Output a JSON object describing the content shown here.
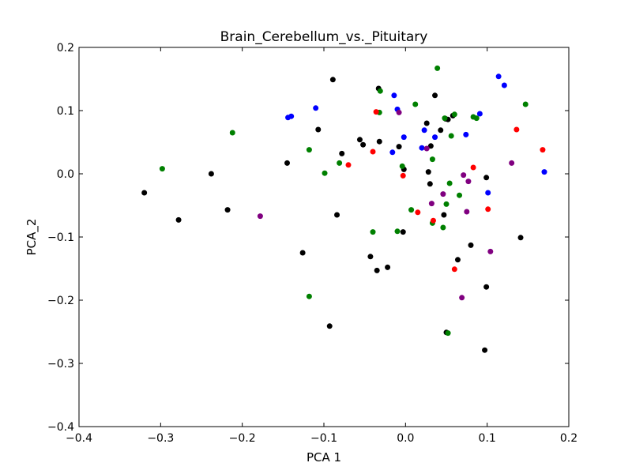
{
  "chart_data": {
    "type": "scatter",
    "title": "Brain_Cerebellum_vs._Pituitary",
    "xlabel": "PCA 1",
    "ylabel": "PCA_2",
    "xlim": [
      -0.4,
      0.2
    ],
    "ylim": [
      -0.4,
      0.2
    ],
    "xticks": [
      -0.4,
      -0.3,
      -0.2,
      -0.1,
      0.0,
      0.1,
      0.2
    ],
    "yticks": [
      -0.4,
      -0.3,
      -0.2,
      -0.1,
      0.0,
      0.1,
      0.2
    ],
    "xtick_labels": [
      "−0.4",
      "−0.3",
      "−0.2",
      "−0.1",
      "0.0",
      "0.1",
      "0.2"
    ],
    "ytick_labels": [
      "−0.4",
      "−0.3",
      "−0.2",
      "−0.1",
      "0.0",
      "0.1",
      "0.2"
    ],
    "grid": false,
    "legend": "none",
    "series": [
      {
        "color": "#000000",
        "points": [
          [
            -0.32,
            -0.03
          ],
          [
            -0.278,
            -0.073
          ],
          [
            -0.238,
            0.0
          ],
          [
            -0.218,
            -0.057
          ],
          [
            -0.145,
            0.017
          ],
          [
            -0.126,
            -0.125
          ],
          [
            -0.107,
            0.07
          ],
          [
            -0.093,
            -0.241
          ],
          [
            -0.089,
            0.149
          ],
          [
            -0.084,
            -0.065
          ],
          [
            -0.078,
            0.032
          ],
          [
            -0.056,
            0.054
          ],
          [
            -0.052,
            0.046
          ],
          [
            -0.043,
            -0.131
          ],
          [
            -0.035,
            -0.153
          ],
          [
            -0.033,
            0.135
          ],
          [
            -0.032,
            0.051
          ],
          [
            -0.022,
            -0.148
          ],
          [
            -0.008,
            0.043
          ],
          [
            -0.003,
            -0.092
          ],
          [
            -0.002,
            0.007
          ],
          [
            0.026,
            0.08
          ],
          [
            0.028,
            0.003
          ],
          [
            0.03,
            -0.016
          ],
          [
            0.031,
            0.044
          ],
          [
            0.036,
            0.124
          ],
          [
            0.043,
            0.069
          ],
          [
            0.047,
            -0.065
          ],
          [
            0.049,
            0.087
          ],
          [
            0.05,
            -0.251
          ],
          [
            0.052,
            0.086
          ],
          [
            0.058,
            0.092
          ],
          [
            0.064,
            -0.136
          ],
          [
            0.08,
            -0.113
          ],
          [
            0.099,
            -0.006
          ],
          [
            0.099,
            -0.179
          ],
          [
            0.097,
            -0.279
          ],
          [
            0.141,
            -0.101
          ]
        ]
      },
      {
        "color": "#0000ff",
        "points": [
          [
            -0.144,
            0.089
          ],
          [
            -0.14,
            0.091
          ],
          [
            -0.11,
            0.104
          ],
          [
            -0.016,
            0.034
          ],
          [
            -0.014,
            0.124
          ],
          [
            -0.01,
            0.102
          ],
          [
            -0.002,
            0.058
          ],
          [
            0.02,
            0.041
          ],
          [
            0.023,
            0.069
          ],
          [
            0.036,
            0.058
          ],
          [
            0.074,
            0.062
          ],
          [
            0.091,
            0.095
          ],
          [
            0.101,
            -0.03
          ],
          [
            0.114,
            0.154
          ],
          [
            0.121,
            0.14
          ],
          [
            0.17,
            0.003
          ]
        ]
      },
      {
        "color": "#008000",
        "points": [
          [
            -0.298,
            0.008
          ],
          [
            -0.212,
            0.065
          ],
          [
            -0.118,
            0.038
          ],
          [
            -0.118,
            -0.194
          ],
          [
            -0.099,
            0.001
          ],
          [
            -0.081,
            0.017
          ],
          [
            -0.04,
            -0.092
          ],
          [
            -0.031,
            0.131
          ],
          [
            -0.032,
            0.097
          ],
          [
            -0.01,
            -0.091
          ],
          [
            -0.004,
            0.012
          ],
          [
            0.007,
            -0.057
          ],
          [
            0.012,
            0.11
          ],
          [
            0.033,
            0.023
          ],
          [
            0.033,
            -0.078
          ],
          [
            0.039,
            0.167
          ],
          [
            0.046,
            -0.085
          ],
          [
            0.048,
            0.088
          ],
          [
            0.05,
            -0.048
          ],
          [
            0.052,
            -0.252
          ],
          [
            0.054,
            -0.015
          ],
          [
            0.056,
            0.06
          ],
          [
            0.06,
            0.094
          ],
          [
            0.066,
            -0.034
          ],
          [
            0.083,
            0.09
          ],
          [
            0.087,
            0.088
          ],
          [
            0.147,
            0.11
          ]
        ]
      },
      {
        "color": "#ff0000",
        "points": [
          [
            -0.07,
            0.014
          ],
          [
            -0.04,
            0.035
          ],
          [
            -0.036,
            0.098
          ],
          [
            -0.003,
            -0.003
          ],
          [
            0.015,
            -0.061
          ],
          [
            0.034,
            -0.074
          ],
          [
            0.06,
            -0.151
          ],
          [
            0.083,
            0.01
          ],
          [
            0.101,
            -0.056
          ],
          [
            0.136,
            0.07
          ],
          [
            0.168,
            0.038
          ]
        ]
      },
      {
        "color": "#800080",
        "points": [
          [
            -0.178,
            -0.067
          ],
          [
            -0.008,
            0.097
          ],
          [
            0.026,
            0.04
          ],
          [
            0.032,
            -0.047
          ],
          [
            0.046,
            -0.032
          ],
          [
            0.069,
            -0.196
          ],
          [
            0.071,
            -0.002
          ],
          [
            0.075,
            -0.06
          ],
          [
            0.077,
            -0.012
          ],
          [
            0.104,
            -0.123
          ],
          [
            0.13,
            0.017
          ]
        ]
      }
    ]
  }
}
